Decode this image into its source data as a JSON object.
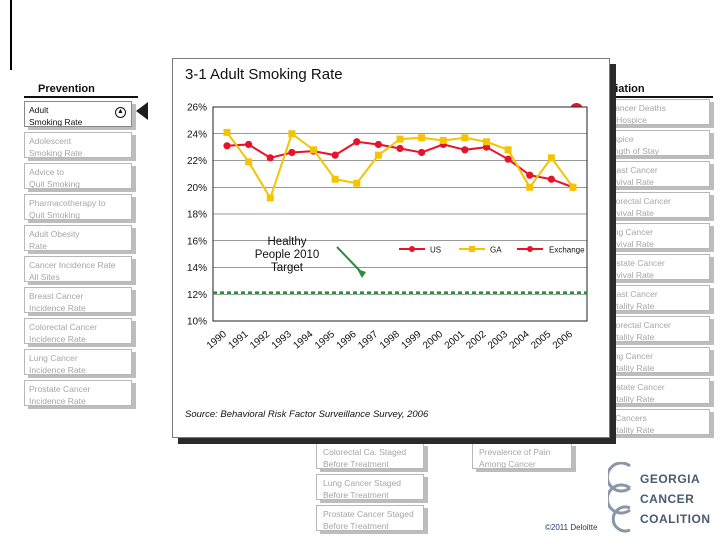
{
  "sidebar": {
    "heading": "Prevention",
    "items": [
      {
        "l1": "Adult",
        "l2": "Smoking Rate"
      },
      {
        "l1": "Adolescent",
        "l2": "Smoking Rate"
      },
      {
        "l1": "Advice to",
        "l2": "Quit Smoking"
      },
      {
        "l1": "Pharmacotherapy to",
        "l2": "Quit Smoking"
      },
      {
        "l1": "Adult Obesity",
        "l2": "Rate"
      },
      {
        "l1": "Cancer Incidence Rate",
        "l2": "All Sites"
      },
      {
        "l1": "Breast Cancer",
        "l2": "Incidence Rate"
      },
      {
        "l1": "Colorectal Cancer",
        "l2": "Incidence Rate"
      },
      {
        "l1": "Lung Cancer",
        "l2": "Incidence Rate"
      },
      {
        "l1": "Prostate Cancer",
        "l2": "Incidence Rate"
      }
    ]
  },
  "right_column": {
    "heading": "alliation",
    "items": [
      {
        "l1": "Cancer Deaths",
        "l2": "n Hospice"
      },
      {
        "l1": "ospice",
        "l2": "ength of Stay"
      },
      {
        "l1": "reast Cancer",
        "l2": "urvival Rate"
      },
      {
        "l1": "olorectal Cancer",
        "l2": "urvival Rate"
      },
      {
        "l1": "ung Cancer",
        "l2": "urvival Rate"
      },
      {
        "l1": "rostate Cancer",
        "l2": "urvival Rate"
      },
      {
        "l1": "reast Cancer",
        "l2": "ortality Rate"
      },
      {
        "l1": "olorectal Cancer",
        "l2": "ortality Rate"
      },
      {
        "l1": "ung Cancer",
        "l2": "ortality Rate"
      },
      {
        "l1": "rostate Cancer",
        "l2": "ortality Rate"
      },
      {
        "l1": "ll Cancers",
        "l2": "ortality Rate"
      }
    ]
  },
  "bottom_buttons": {
    "col1": [
      {
        "l1": "Colorectal Ca. Staged",
        "l2": "Before Treatment"
      },
      {
        "l1": "Lung Cancer Staged",
        "l2": "Before Treatment"
      },
      {
        "l1": "Prostate Cancer Staged",
        "l2": "Before Treatment"
      }
    ],
    "col2": [
      {
        "l1": "Prevalence of Pain",
        "l2": "Among Cancer Patients"
      }
    ]
  },
  "panel": {
    "title": "3-1 Adult Smoking Rate",
    "source": "Source: Behavioral Risk Factor Surveillance Survey, 2006"
  },
  "logo": {
    "line1": "GEORGIA",
    "line2": "CANCER",
    "line3": "COALITION"
  },
  "copyright": "©2011 Deloitte",
  "colors": {
    "us": "#e8132b",
    "ga": "#f5c400",
    "exchange": "#e8132b",
    "target": "#2e8b3e"
  },
  "chart_data": {
    "type": "line",
    "categories": [
      "1990",
      "1991",
      "1992",
      "1993",
      "1994",
      "1995",
      "1996",
      "1997",
      "1998",
      "1999",
      "2000",
      "2001",
      "2002",
      "2003",
      "2004",
      "2005",
      "2006"
    ],
    "y_ticks": [
      "10%",
      "12%",
      "14%",
      "16%",
      "18%",
      "20%",
      "22%",
      "24%",
      "26%"
    ],
    "ylim": [
      10,
      26
    ],
    "legend": [
      "US",
      "GA",
      "Exchange"
    ],
    "series": [
      {
        "name": "US",
        "values": [
          23.1,
          23.2,
          22.2,
          22.6,
          22.7,
          22.4,
          23.4,
          23.2,
          22.9,
          22.6,
          23.2,
          22.8,
          23.0,
          22.1,
          20.9,
          20.6,
          20.0
        ]
      },
      {
        "name": "GA",
        "values": [
          24.1,
          21.9,
          19.2,
          24.0,
          22.8,
          20.6,
          20.3,
          22.4,
          23.6,
          23.7,
          23.5,
          23.7,
          23.4,
          22.8,
          20.0,
          22.2,
          20.0
        ]
      }
    ],
    "annotation": {
      "lines": [
        "Healthy",
        "People 2010",
        "Target"
      ],
      "value": 12.1
    }
  }
}
